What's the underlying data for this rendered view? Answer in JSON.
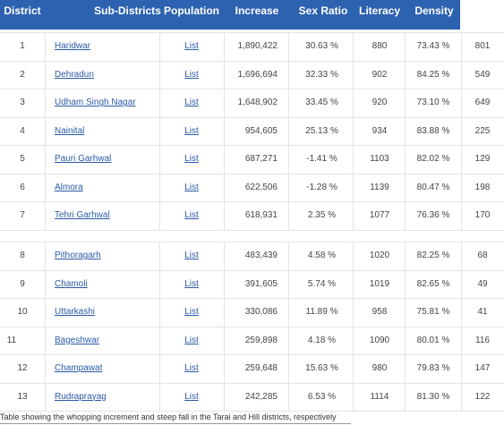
{
  "table": {
    "headers": [
      "District",
      "Sub-Districts",
      "Population",
      "Increase",
      "Sex Ratio",
      "Literacy",
      "Density"
    ],
    "group1": [
      {
        "district": "1",
        "name": "Haridwar",
        "list": "List",
        "population": "1,890,422",
        "increase": "30.63 %",
        "sex_ratio": "880",
        "literacy": "73.43 %",
        "density": "801"
      },
      {
        "district": "2",
        "name": "Dehradun",
        "list": "List",
        "population": "1,696,694",
        "increase": "32.33 %",
        "sex_ratio": "902",
        "literacy": "84.25 %",
        "density": "549"
      },
      {
        "district": "3",
        "name": "Udham Singh Nagar",
        "list": "List",
        "population": "1,648,902",
        "increase": "33.45 %",
        "sex_ratio": "920",
        "literacy": "73.10 %",
        "density": "649"
      },
      {
        "district": "4",
        "name": "Nainital",
        "list": "List",
        "population": "954,605",
        "increase": "25.13 %",
        "sex_ratio": "934",
        "literacy": "83.88 %",
        "density": "225"
      },
      {
        "district": "5",
        "name": "Pauri Garhwal",
        "list": "List",
        "population": "687,271",
        "increase": "-1.41 %",
        "sex_ratio": "1103",
        "literacy": "82.02 %",
        "density": "129"
      },
      {
        "district": "6",
        "name": "Almora",
        "list": "List",
        "population": "622,506",
        "increase": "-1.28 %",
        "sex_ratio": "1139",
        "literacy": "80.47 %",
        "density": "198"
      },
      {
        "district": "7",
        "name": "Tehri Garhwal",
        "list": "List",
        "population": "618,931",
        "increase": "2.35 %",
        "sex_ratio": "1077",
        "literacy": "76.36 %",
        "density": "170"
      }
    ],
    "group2": [
      {
        "district": "8",
        "name": "Pithoragarh",
        "list": "List",
        "population": "483,439",
        "increase": "4.58 %",
        "sex_ratio": "1020",
        "literacy": "82.25 %",
        "density": "68"
      },
      {
        "district": "9",
        "name": "Chamoli",
        "list": "List",
        "population": "391,605",
        "increase": "5.74 %",
        "sex_ratio": "1019",
        "literacy": "82.65 %",
        "density": "49"
      },
      {
        "district": "10",
        "name": "Uttarkashi",
        "list": "List",
        "population": "330,086",
        "increase": "11.89 %",
        "sex_ratio": "958",
        "literacy": "75.81 %",
        "density": "41"
      },
      {
        "district": "11",
        "name": "Bageshwar",
        "list": "List",
        "population": "259,898",
        "increase": "4.18 %",
        "sex_ratio": "1090",
        "literacy": "80.01 %",
        "density": "116"
      },
      {
        "district": "12",
        "name": "Champawat",
        "list": "List",
        "population": "259,648",
        "increase": "15.63 %",
        "sex_ratio": "980",
        "literacy": "79.83 %",
        "density": "147"
      },
      {
        "district": "13",
        "name": "Rudraprayag",
        "list": "List",
        "population": "242,285",
        "increase": "6.53 %",
        "sex_ratio": "1114",
        "literacy": "81.30 %",
        "density": "122"
      }
    ]
  },
  "caption": "Table showing the whopping increment and steep fall in the Tarai and Hill districts, respectively",
  "colors": {
    "header_bg": "#2d62b1",
    "link": "#2b5aa7"
  }
}
